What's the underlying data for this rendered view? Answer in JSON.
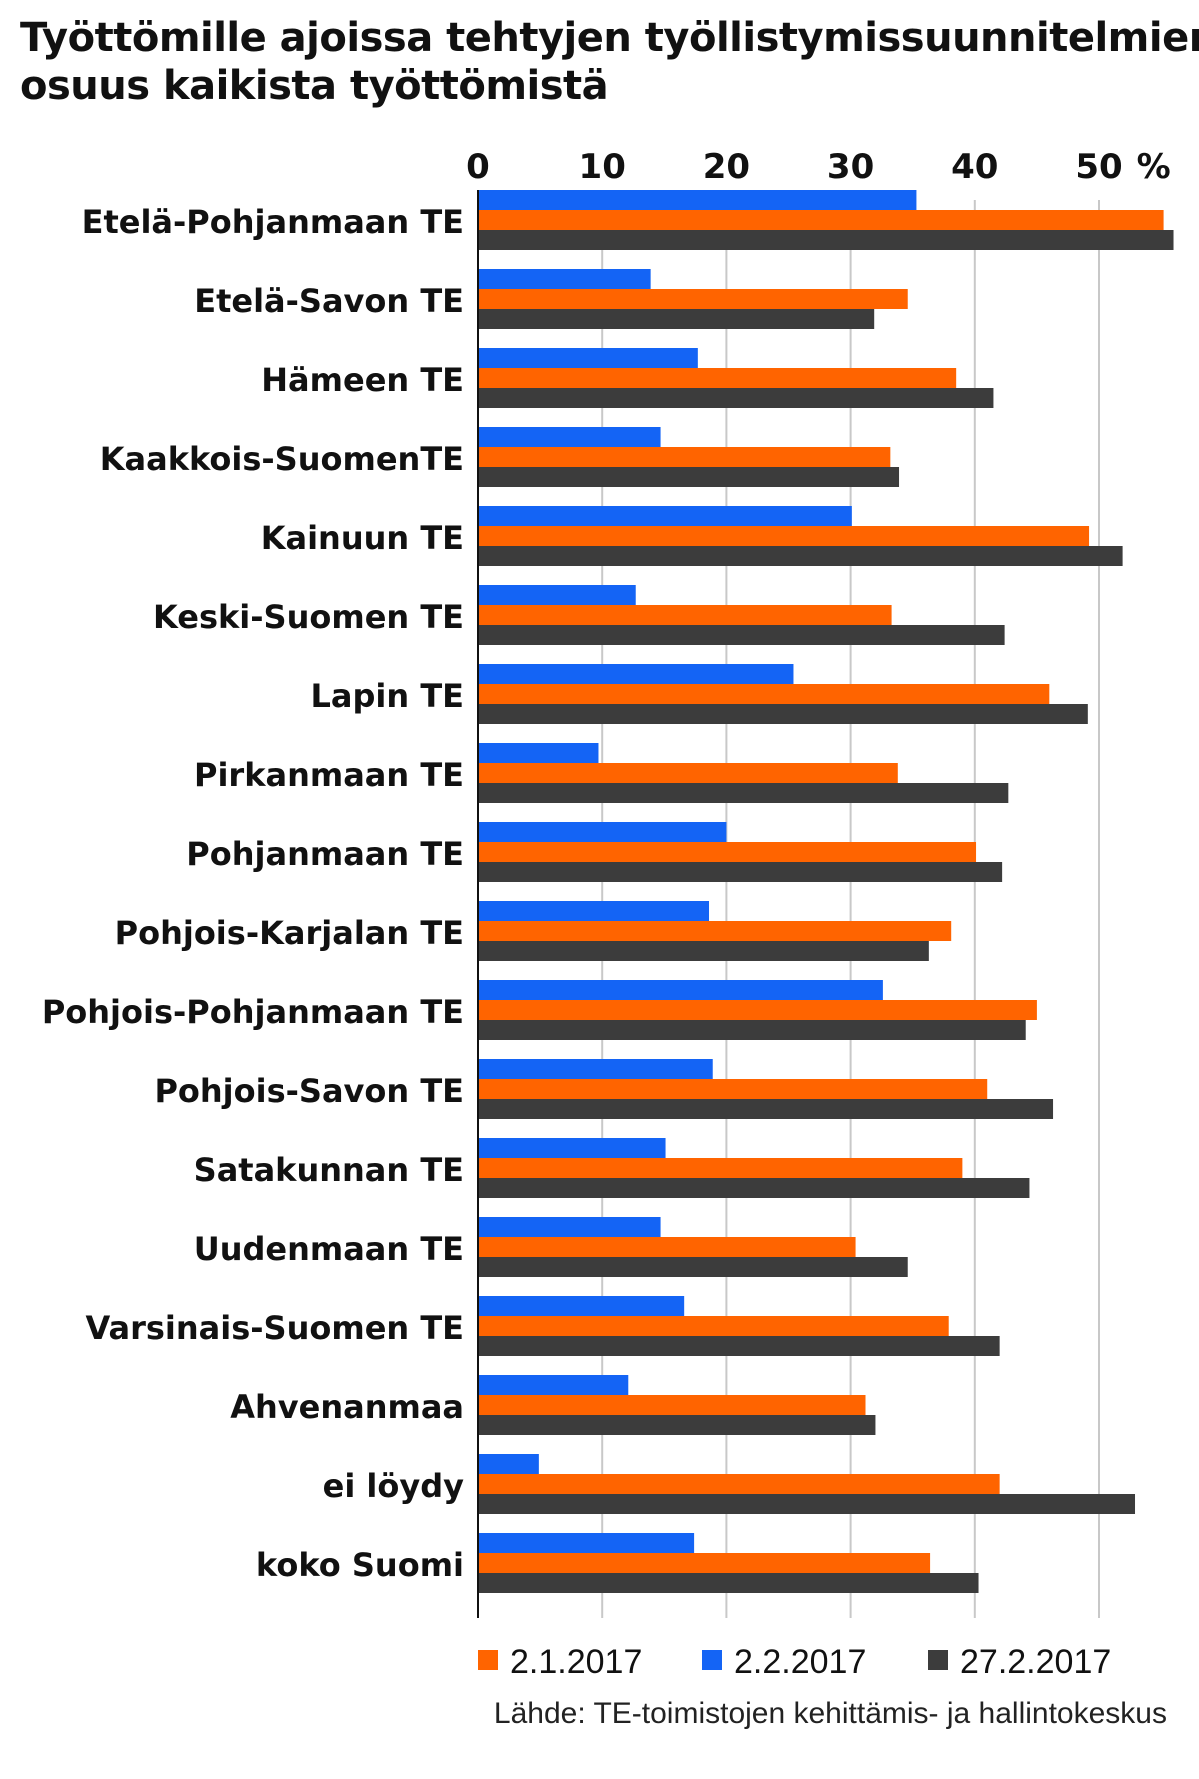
{
  "title_line1": "Työttömille ajoissa tehtyjen työllistymissuunnitelmien",
  "title_line2": "osuus kaikista työttömistä",
  "source": "Lähde: TE-toimistojen kehittämis- ja hallintokeskus",
  "colors": {
    "orange": "#ff6400",
    "blue": "#1464f5",
    "dark": "#3c3c3c",
    "grid": "#c8c8c8"
  },
  "chart_data": {
    "type": "bar",
    "orientation": "horizontal",
    "title": "Työttömille ajoissa tehtyjen työllistymissuunnitelmien osuus kaikista työttömistä",
    "unit": "%",
    "xlim": [
      0,
      56
    ],
    "ticks": [
      0,
      10,
      20,
      30,
      40,
      50
    ],
    "grid": true,
    "legend_position": "bottom",
    "categories": [
      "Etelä-Pohjanmaan TE",
      "Etelä-Savon TE",
      "Hämeen TE",
      "Kaakkois-SuomenTE",
      "Kainuun TE",
      "Keski-Suomen TE",
      "Lapin TE",
      "Pirkanmaan TE",
      "Pohjanmaan TE",
      "Pohjois-Karjalan TE",
      "Pohjois-Pohjanmaan TE",
      "Pohjois-Savon TE",
      "Satakunnan TE",
      "Uudenmaan TE",
      "Varsinais-Suomen TE",
      "Ahvenanmaa",
      "ei löydy",
      "koko Suomi"
    ],
    "series": [
      {
        "name": "2.2.2017",
        "color": "#1464f5",
        "values": [
          35.3,
          13.9,
          17.7,
          14.7,
          30.1,
          12.7,
          25.4,
          9.7,
          20.0,
          18.6,
          32.6,
          18.9,
          15.1,
          14.7,
          16.6,
          12.1,
          4.9,
          17.4
        ]
      },
      {
        "name": "2.1.2017",
        "color": "#ff6400",
        "values": [
          55.2,
          34.6,
          38.5,
          33.2,
          49.2,
          33.3,
          46.0,
          33.8,
          40.1,
          38.1,
          45.0,
          41.0,
          39.0,
          30.4,
          37.9,
          31.2,
          42.0,
          36.4
        ]
      },
      {
        "name": "27.2.2017",
        "color": "#3c3c3c",
        "values": [
          56.0,
          31.9,
          41.5,
          33.9,
          51.9,
          42.4,
          49.1,
          42.7,
          42.2,
          36.3,
          44.1,
          46.3,
          44.4,
          34.6,
          42.0,
          32.0,
          52.9,
          40.3
        ]
      }
    ],
    "legend": [
      {
        "name": "2.1.2017",
        "color": "#ff6400"
      },
      {
        "name": "2.2.2017",
        "color": "#1464f5"
      },
      {
        "name": "27.2.2017",
        "color": "#3c3c3c"
      }
    ]
  }
}
